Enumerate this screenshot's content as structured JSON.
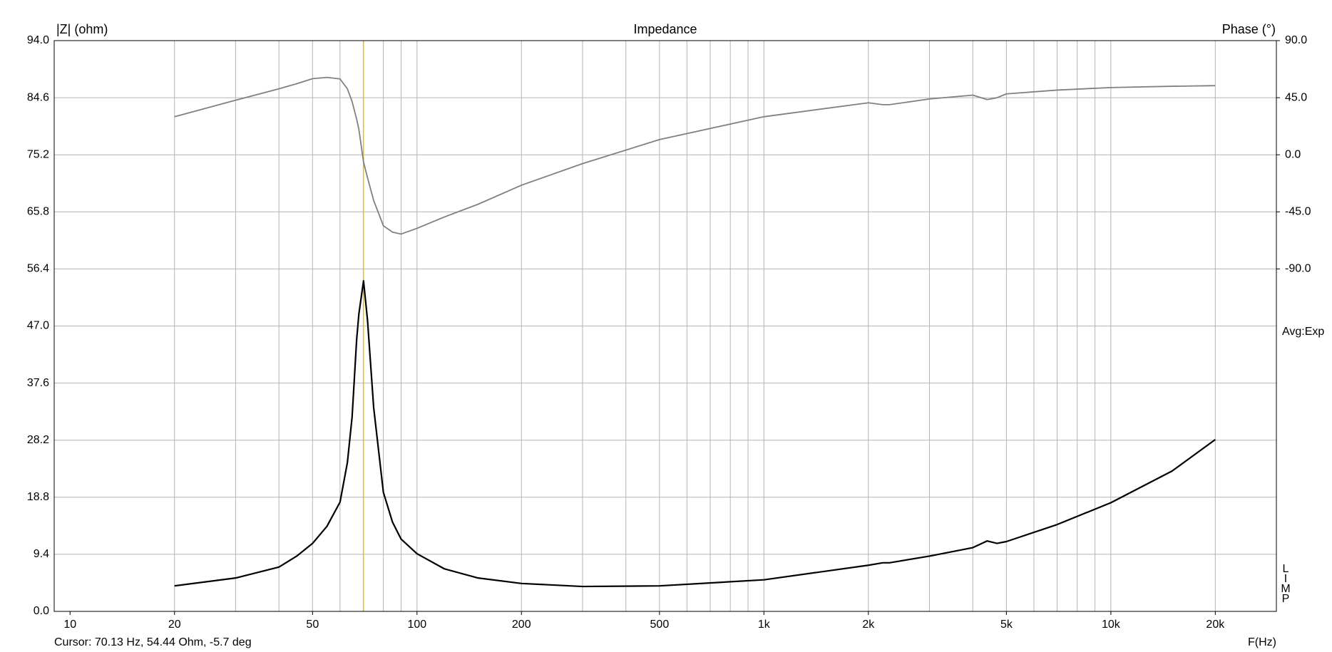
{
  "chart_data": {
    "type": "line",
    "title": "Impedance",
    "y_label": "|Z| (ohm)",
    "y2_label": "Phase (°)",
    "x_label": "F(Hz)",
    "side_note": "Avg:Exp",
    "brand": "LIMP",
    "log_x": true,
    "grid": true,
    "grid_color": "#b4b4b4",
    "xlim": [
      9,
      30000
    ],
    "xticks": [
      10,
      20,
      50,
      100,
      200,
      500,
      {
        "value": 1000,
        "label": "1k"
      },
      {
        "value": 2000,
        "label": "2k"
      },
      {
        "value": 5000,
        "label": "5k"
      },
      {
        "value": 10000,
        "label": "10k"
      },
      {
        "value": 20000,
        "label": "20k"
      }
    ],
    "xgrid": [
      20,
      30,
      40,
      50,
      60,
      70,
      80,
      90,
      100,
      200,
      300,
      400,
      500,
      600,
      700,
      800,
      900,
      1000,
      2000,
      3000,
      4000,
      5000,
      6000,
      7000,
      8000,
      9000,
      10000,
      20000
    ],
    "ylim": [
      0,
      94
    ],
    "yticks": [
      {
        "value": 0,
        "label": "0.0"
      },
      9.4,
      18.8,
      28.2,
      37.6,
      {
        "value": 47,
        "label": "47.0"
      },
      56.4,
      65.8,
      75.2,
      84.6,
      {
        "value": 94,
        "label": "94.0"
      }
    ],
    "y2lim": [
      -360,
      90
    ],
    "y2ticks": [
      {
        "value": -90,
        "label": "-90.0"
      },
      {
        "value": -45,
        "label": "-45.0"
      },
      {
        "value": 0,
        "label": "0.0"
      },
      {
        "value": 45,
        "label": "45.0"
      },
      {
        "value": 90,
        "label": "90.0"
      }
    ],
    "x": [
      20,
      30,
      40,
      45,
      50,
      55,
      60,
      63,
      65,
      67,
      68,
      70.13,
      72,
      75,
      80,
      85,
      90,
      100,
      120,
      150,
      200,
      300,
      500,
      1000,
      2000,
      2200,
      2300,
      3000,
      4000,
      4400,
      4700,
      5000,
      7000,
      10000,
      15000,
      20000
    ],
    "series": [
      {
        "name": "|Z|",
        "color": "#000000",
        "axis": "y",
        "values": [
          4.2,
          5.5,
          7.3,
          9.1,
          11.2,
          14,
          18,
          24.5,
          32,
          44.8,
          49,
          54.44,
          48,
          33.6,
          19.6,
          14.7,
          11.9,
          9.5,
          7,
          5.5,
          4.6,
          4.1,
          4.2,
          5.2,
          7.6,
          8,
          8,
          9.1,
          10.5,
          11.6,
          11.2,
          11.5,
          14.3,
          17.9,
          23.1,
          28.3
        ]
      },
      {
        "name": "Phase",
        "color": "#808080",
        "axis": "y2",
        "values": [
          30,
          43,
          52,
          56,
          60,
          61,
          59.8,
          52,
          42,
          28,
          20,
          -5.7,
          -18,
          -36,
          -56,
          -61,
          -62.5,
          -58,
          -49,
          -39,
          -24,
          -7,
          12,
          30,
          41,
          39.5,
          39.5,
          44,
          47,
          43.5,
          45,
          48,
          51,
          53,
          54,
          54.5
        ]
      }
    ],
    "cursor": {
      "x": 70.13,
      "color": "#d8c800",
      "text": "Cursor: 70.13 Hz, 54.44 Ohm, -5.7 deg"
    }
  }
}
